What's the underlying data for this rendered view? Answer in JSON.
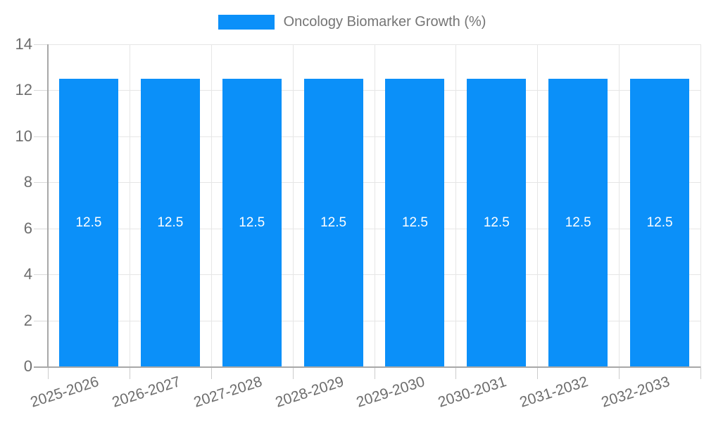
{
  "chart_data": {
    "type": "bar",
    "title": "Oncology Biomarker Growth (%)",
    "categories": [
      "2025-2026",
      "2026-2027",
      "2027-2028",
      "2028-2029",
      "2029-2030",
      "2030-2031",
      "2031-2032",
      "2032-2033"
    ],
    "values": [
      12.5,
      12.5,
      12.5,
      12.5,
      12.5,
      12.5,
      12.5,
      12.5
    ],
    "bar_value_labels": [
      "12.5",
      "12.5",
      "12.5",
      "12.5",
      "12.5",
      "12.5",
      "12.5",
      "12.5"
    ],
    "xlabel": "",
    "ylabel": "",
    "ylim": [
      0,
      14
    ],
    "yticks": [
      0,
      2,
      4,
      6,
      8,
      10,
      12,
      14
    ],
    "grid": true,
    "legend_position": "top",
    "legend_label": "Oncology Biomarker Growth (%)",
    "colors": {
      "bar": "#0b90f9",
      "bar_label": "#ffffff",
      "axis_text": "#6d6d6d",
      "legend_text": "#757575",
      "gridline": "#e6e6e6",
      "tick": "#d9d9d9",
      "x_tick": "#cccccc",
      "axis_line": "#a8a8a8",
      "background": "#ffffff"
    }
  }
}
